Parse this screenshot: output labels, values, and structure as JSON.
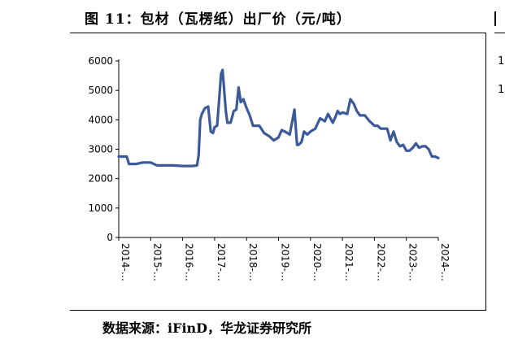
{
  "header": {
    "title": "图 11：包材（瓦楞纸）出厂价（元/吨）",
    "right_fragment": [
      "1",
      "1"
    ]
  },
  "footer": {
    "source": "数据来源：iFinD，华龙证券研究所"
  },
  "chart_data": {
    "type": "line",
    "title": "",
    "xlabel": "",
    "ylabel": "",
    "ylim": [
      0,
      6000
    ],
    "y_ticks": [
      "0",
      "1000",
      "2000",
      "3000",
      "4000",
      "5000",
      "6000"
    ],
    "x_ticks": [
      "2014-…",
      "2015-…",
      "2016-…",
      "2017-…",
      "2018-…",
      "2019-…",
      "2020-…",
      "2021-…",
      "2022-…",
      "2023-…",
      "2024-…"
    ],
    "xlim": [
      2014.0,
      2024.0
    ],
    "grid": false,
    "legend": "none",
    "line_color": "#3c5a99",
    "series": [
      {
        "x": [
          2014.0,
          2014.25,
          2014.32,
          2014.55,
          2014.75,
          2015.0,
          2015.2,
          2015.4,
          2015.7,
          2016.0,
          2016.3,
          2016.45,
          2016.5,
          2016.55,
          2016.6,
          2016.7,
          2016.8,
          2016.88,
          2016.95,
          2017.0,
          2017.08,
          2017.15,
          2017.2,
          2017.25,
          2017.3,
          2017.35,
          2017.4,
          2017.5,
          2017.6,
          2017.68,
          2017.75,
          2017.82,
          2017.9,
          2018.0,
          2018.1,
          2018.2,
          2018.3,
          2018.4,
          2018.55,
          2018.7,
          2018.85,
          2019.0,
          2019.1,
          2019.2,
          2019.35,
          2019.5,
          2019.58,
          2019.62,
          2019.68,
          2019.72,
          2019.8,
          2019.9,
          2020.0,
          2020.15,
          2020.3,
          2020.45,
          2020.55,
          2020.7,
          2020.78,
          2020.85,
          2020.92,
          2021.0,
          2021.15,
          2021.25,
          2021.35,
          2021.45,
          2021.55,
          2021.7,
          2021.85,
          2022.0,
          2022.1,
          2022.2,
          2022.3,
          2022.4,
          2022.5,
          2022.6,
          2022.7,
          2022.8,
          2022.9,
          2023.0,
          2023.1,
          2023.2,
          2023.3,
          2023.4,
          2023.5,
          2023.6,
          2023.7,
          2023.8,
          2023.9,
          2024.0
        ],
        "y": [
          2750,
          2750,
          2500,
          2500,
          2550,
          2550,
          2450,
          2450,
          2450,
          2430,
          2430,
          2450,
          2800,
          4000,
          4200,
          4400,
          4450,
          3600,
          3550,
          3750,
          3800,
          4800,
          5550,
          5700,
          5000,
          4300,
          3900,
          3900,
          4300,
          4350,
          5100,
          4600,
          4700,
          4400,
          4150,
          3800,
          3800,
          3800,
          3550,
          3450,
          3300,
          3400,
          3650,
          3600,
          3500,
          4350,
          3150,
          3150,
          3200,
          3250,
          3600,
          3500,
          3600,
          3700,
          4050,
          3950,
          4200,
          3900,
          4100,
          4300,
          4200,
          4250,
          4200,
          4700,
          4550,
          4300,
          4150,
          4150,
          3950,
          3800,
          3800,
          3700,
          3700,
          3700,
          3300,
          3600,
          3250,
          3100,
          3150,
          2950,
          2950,
          3050,
          3200,
          3050,
          3100,
          3100,
          3000,
          2750,
          2750,
          2700
        ]
      }
    ]
  }
}
